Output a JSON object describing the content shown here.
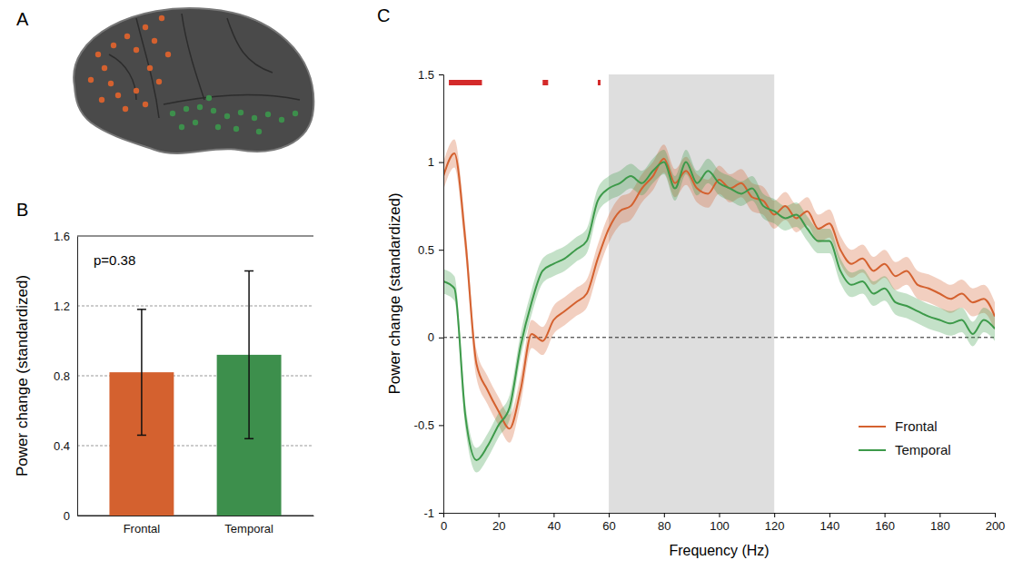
{
  "figure": {
    "panel": "A"
  },
  "chart_data": [
    {
      "type": "bar",
      "panel": "B",
      "categories": [
        "Frontal",
        "Temporal"
      ],
      "values": [
        0.82,
        0.92
      ],
      "errors": [
        0.36,
        0.48
      ],
      "colors": [
        "#d4612f",
        "#3d8f4c"
      ],
      "y_label": "Power change (standardized)",
      "annotation": "p=0.38",
      "ylim": [
        0,
        1.6
      ],
      "yticks": [
        0,
        0.4,
        0.8,
        1.2,
        1.6
      ],
      "grid": true
    },
    {
      "type": "line",
      "panel": "C",
      "x_label": "Frequency (Hz)",
      "y_label": "Power change (standardized)",
      "x": [
        0,
        4,
        8,
        12,
        16,
        20,
        24,
        28,
        32,
        36,
        40,
        44,
        48,
        52,
        56,
        60,
        64,
        68,
        72,
        76,
        80,
        84,
        88,
        92,
        96,
        100,
        104,
        108,
        112,
        116,
        120,
        124,
        128,
        132,
        136,
        140,
        144,
        148,
        152,
        156,
        160,
        164,
        168,
        172,
        176,
        180,
        184,
        188,
        192,
        196,
        200
      ],
      "series": [
        {
          "name": "Frontal",
          "color": "#d4612f",
          "values": [
            0.92,
            1.05,
            0.55,
            -0.15,
            -0.3,
            -0.42,
            -0.52,
            -0.3,
            0.02,
            -0.02,
            0.1,
            0.15,
            0.2,
            0.25,
            0.45,
            0.62,
            0.72,
            0.75,
            0.85,
            0.92,
            1.02,
            0.88,
            0.95,
            0.85,
            0.82,
            0.9,
            0.85,
            0.88,
            0.8,
            0.78,
            0.7,
            0.75,
            0.68,
            0.72,
            0.62,
            0.65,
            0.5,
            0.42,
            0.45,
            0.38,
            0.42,
            0.35,
            0.38,
            0.3,
            0.28,
            0.25,
            0.22,
            0.25,
            0.2,
            0.22,
            0.12
          ],
          "error": [
            0.08,
            0.08,
            0.08,
            0.08,
            0.08,
            0.08,
            0.08,
            0.08,
            0.08,
            0.08,
            0.08,
            0.08,
            0.08,
            0.08,
            0.08,
            0.08,
            0.08,
            0.08,
            0.08,
            0.08,
            0.08,
            0.08,
            0.08,
            0.08,
            0.08,
            0.08,
            0.08,
            0.08,
            0.08,
            0.08,
            0.08,
            0.08,
            0.08,
            0.08,
            0.08,
            0.08,
            0.08,
            0.08,
            0.08,
            0.08,
            0.08,
            0.08,
            0.08,
            0.08,
            0.08,
            0.08,
            0.08,
            0.08,
            0.08,
            0.08,
            0.08
          ]
        },
        {
          "name": "Temporal",
          "color": "#3d9a4a",
          "values": [
            0.32,
            0.28,
            -0.45,
            -0.7,
            -0.62,
            -0.5,
            -0.4,
            -0.05,
            0.2,
            0.38,
            0.42,
            0.45,
            0.5,
            0.55,
            0.78,
            0.85,
            0.88,
            0.92,
            0.88,
            0.95,
            1.0,
            0.85,
            1.0,
            0.88,
            0.95,
            0.88,
            0.85,
            0.82,
            0.85,
            0.75,
            0.72,
            0.68,
            0.7,
            0.62,
            0.55,
            0.55,
            0.38,
            0.3,
            0.32,
            0.25,
            0.28,
            0.2,
            0.18,
            0.15,
            0.12,
            0.1,
            0.08,
            0.1,
            0.02,
            0.1,
            0.05
          ],
          "error": [
            0.07,
            0.07,
            0.07,
            0.07,
            0.07,
            0.07,
            0.07,
            0.07,
            0.07,
            0.07,
            0.07,
            0.07,
            0.07,
            0.07,
            0.07,
            0.07,
            0.07,
            0.07,
            0.07,
            0.07,
            0.07,
            0.07,
            0.07,
            0.07,
            0.07,
            0.07,
            0.07,
            0.07,
            0.07,
            0.07,
            0.07,
            0.07,
            0.07,
            0.07,
            0.07,
            0.07,
            0.07,
            0.07,
            0.07,
            0.07,
            0.07,
            0.07,
            0.07,
            0.07,
            0.07,
            0.07,
            0.07,
            0.07,
            0.07,
            0.07,
            0.07
          ]
        }
      ],
      "shaded_region": [
        60,
        120
      ],
      "significance": [
        [
          2,
          14
        ],
        [
          36,
          38
        ],
        [
          56,
          57
        ]
      ],
      "significance_color": "#d42a2a",
      "reference_line": 0,
      "xlim": [
        0,
        200
      ],
      "xticks": [
        0,
        20,
        40,
        60,
        80,
        100,
        120,
        140,
        160,
        180,
        200
      ],
      "ylim": [
        -1,
        1.5
      ],
      "yticks": [
        -1,
        -0.5,
        0,
        0.5,
        1,
        1.5
      ],
      "legend": "lower right"
    }
  ]
}
